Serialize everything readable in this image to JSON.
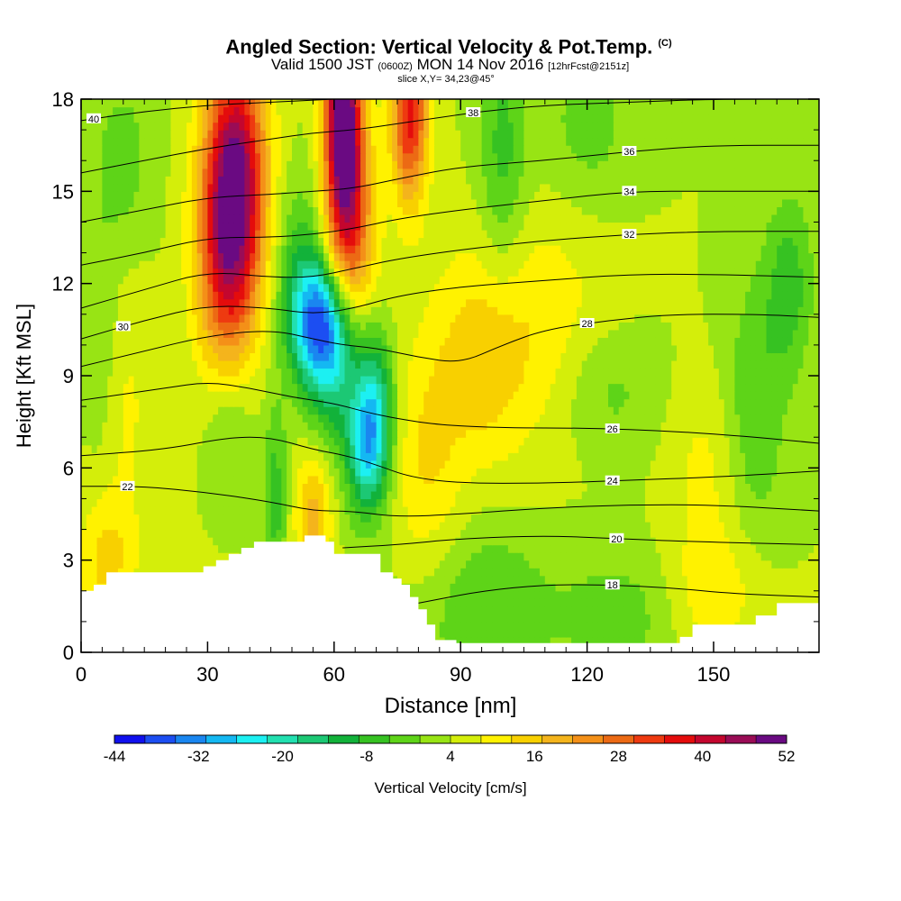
{
  "title": {
    "main": "Angled Section: Vertical Velocity & Pot.Temp.",
    "copyright": "(C)",
    "valid_prefix": "Valid 1500 JST",
    "valid_utc": "(0600Z)",
    "valid_suffix": "MON 14 Nov 2016",
    "forecast": "[12hrFcst@2151z]",
    "slice": "slice X,Y= 34,23@45°"
  },
  "colors": {
    "scale": [
      "#1010ee",
      "#1c4ef2",
      "#1a86f0",
      "#14b8f2",
      "#1cf0f2",
      "#22e0b0",
      "#1cc874",
      "#12b23a",
      "#36c222",
      "#5ed418",
      "#98e414",
      "#d4ee0a",
      "#fff200",
      "#f8d000",
      "#f4b41c",
      "#f49018",
      "#ec6a14",
      "#ee3a10",
      "#e40c0c",
      "#c4062e",
      "#9a0c56",
      "#6a0a82"
    ],
    "terrain": "#ffffff"
  },
  "chart_data": {
    "type": "heatmap",
    "xlabel": "Distance [nm]",
    "ylabel": "Height [Kft MSL]",
    "xlim": [
      0,
      175
    ],
    "ylim": [
      0,
      18
    ],
    "x_ticks": [
      "0",
      "30",
      "60",
      "90",
      "120",
      "150"
    ],
    "y_ticks": [
      "0",
      "3",
      "6",
      "9",
      "12",
      "15",
      "18"
    ],
    "colorbar": {
      "label": "Vertical Velocity [cm/s]",
      "tick_labels": [
        "-44",
        "-32",
        "-20",
        "-8",
        "4",
        "16",
        "28",
        "40",
        "52"
      ],
      "min": -44,
      "max": 52,
      "step": 4
    },
    "velocity_features": [
      {
        "x": 37,
        "y": 15.5,
        "sx": 5,
        "sy": 3,
        "w": 34
      },
      {
        "x": 34,
        "y": 13,
        "sx": 5,
        "sy": 3,
        "w": 22
      },
      {
        "x": 62,
        "y": 17.8,
        "sx": 3,
        "sy": 2.6,
        "w": 44
      },
      {
        "x": 64,
        "y": 14,
        "sx": 4,
        "sy": 2.5,
        "w": 24
      },
      {
        "x": 78,
        "y": 17.5,
        "sx": 3,
        "sy": 2,
        "w": 30
      },
      {
        "x": 56,
        "y": 10.8,
        "sx": 4.5,
        "sy": 1.3,
        "w": -26
      },
      {
        "x": 60,
        "y": 9.5,
        "sx": 5,
        "sy": 1.8,
        "w": -20
      },
      {
        "x": 68,
        "y": 6.6,
        "sx": 3.5,
        "sy": 1.5,
        "w": -26
      },
      {
        "x": 70,
        "y": 8.5,
        "sx": 3,
        "sy": 1.5,
        "w": -14
      },
      {
        "x": 52,
        "y": 12.5,
        "sx": 4,
        "sy": 2,
        "w": -10
      },
      {
        "x": 46,
        "y": 5,
        "sx": 2,
        "sy": 2.2,
        "w": -10
      },
      {
        "x": 35,
        "y": 7.5,
        "sx": 4,
        "sy": 1.5,
        "w": -7
      },
      {
        "x": 100,
        "y": 16,
        "sx": 4,
        "sy": 3,
        "w": -10
      },
      {
        "x": 120,
        "y": 17,
        "sx": 8,
        "sy": 2,
        "w": -6
      },
      {
        "x": 125,
        "y": 8.5,
        "sx": 8,
        "sy": 1.5,
        "w": -6
      },
      {
        "x": 160,
        "y": 8,
        "sx": 5,
        "sy": 3,
        "w": -8
      },
      {
        "x": 168,
        "y": 12,
        "sx": 4,
        "sy": 2,
        "w": -10
      },
      {
        "x": 5,
        "y": 10,
        "sx": 3,
        "sy": 3,
        "w": -5
      },
      {
        "x": 10,
        "y": 16,
        "sx": 5,
        "sy": 2,
        "w": -6
      },
      {
        "x": 95,
        "y": 1.5,
        "sx": 12,
        "sy": 2,
        "w": -8
      },
      {
        "x": 128,
        "y": 1.2,
        "sx": 10,
        "sy": 1.5,
        "w": -6
      },
      {
        "x": 95,
        "y": 9.5,
        "sx": 8,
        "sy": 2.5,
        "w": 9
      },
      {
        "x": 110,
        "y": 11,
        "sx": 12,
        "sy": 3,
        "w": 6
      },
      {
        "x": 82,
        "y": 6,
        "sx": 6,
        "sy": 3,
        "w": 8
      },
      {
        "x": 55,
        "y": 4.5,
        "sx": 3,
        "sy": 1.5,
        "w": 14
      },
      {
        "x": 10,
        "y": 8,
        "sx": 5,
        "sy": 3,
        "w": 5
      },
      {
        "x": 148,
        "y": 6,
        "sx": 6,
        "sy": 2,
        "w": 5
      },
      {
        "x": 150,
        "y": 2,
        "sx": 8,
        "sy": 1.5,
        "w": 7
      },
      {
        "x": 6,
        "y": 3,
        "sx": 5,
        "sy": 1.5,
        "w": 9
      }
    ],
    "background_velocity": 0,
    "terrain_steps": [
      [
        0,
        2.0
      ],
      [
        3,
        2.0
      ],
      [
        3,
        2.2
      ],
      [
        6,
        2.2
      ],
      [
        6,
        2.6
      ],
      [
        9,
        2.6
      ],
      [
        9,
        2.6
      ],
      [
        29,
        2.6
      ],
      [
        29,
        2.8
      ],
      [
        32,
        2.8
      ],
      [
        32,
        3.0
      ],
      [
        35,
        3.0
      ],
      [
        35,
        3.2
      ],
      [
        38,
        3.2
      ],
      [
        38,
        3.4
      ],
      [
        41,
        3.4
      ],
      [
        41,
        3.6
      ],
      [
        53,
        3.6
      ],
      [
        53,
        3.8
      ],
      [
        58,
        3.8
      ],
      [
        58,
        3.6
      ],
      [
        60,
        3.6
      ],
      [
        60,
        3.2
      ],
      [
        71,
        3.2
      ],
      [
        71,
        2.6
      ],
      [
        74,
        2.6
      ],
      [
        74,
        2.4
      ],
      [
        76,
        2.4
      ],
      [
        76,
        2.2
      ],
      [
        78,
        2.2
      ],
      [
        78,
        1.8
      ],
      [
        80,
        1.8
      ],
      [
        80,
        1.4
      ],
      [
        82,
        1.4
      ],
      [
        82,
        0.9
      ],
      [
        84,
        0.9
      ],
      [
        84,
        0.4
      ],
      [
        89,
        0.4
      ],
      [
        89,
        0.3
      ],
      [
        142,
        0.3
      ],
      [
        142,
        0.5
      ],
      [
        145,
        0.5
      ],
      [
        145,
        0.9
      ],
      [
        160,
        0.9
      ],
      [
        160,
        1.2
      ],
      [
        165,
        1.2
      ],
      [
        165,
        1.6
      ],
      [
        175,
        1.6
      ]
    ],
    "theta_contours": [
      {
        "value": 18,
        "label": "18",
        "label_x": 126,
        "points": [
          [
            80,
            1.6
          ],
          [
            95,
            2.0
          ],
          [
            110,
            2.2
          ],
          [
            125,
            2.2
          ],
          [
            140,
            2.1
          ],
          [
            155,
            1.9
          ],
          [
            175,
            1.8
          ]
        ]
      },
      {
        "value": 20,
        "label": "20",
        "label_x": 127,
        "points": [
          [
            62,
            3.4
          ],
          [
            75,
            3.5
          ],
          [
            90,
            3.7
          ],
          [
            110,
            3.8
          ],
          [
            127,
            3.7
          ],
          [
            145,
            3.6
          ],
          [
            175,
            3.5
          ]
        ]
      },
      {
        "value": 22,
        "label": "22",
        "label_x": 11,
        "points": [
          [
            0,
            5.4
          ],
          [
            15,
            5.4
          ],
          [
            30,
            5.2
          ],
          [
            45,
            4.9
          ],
          [
            55,
            4.6
          ],
          [
            64,
            4.6
          ],
          [
            75,
            4.4
          ],
          [
            90,
            4.5
          ],
          [
            110,
            4.7
          ],
          [
            130,
            4.8
          ],
          [
            150,
            4.8
          ],
          [
            175,
            4.6
          ]
        ]
      },
      {
        "value": 24,
        "label": "24",
        "label_x": 126,
        "points": [
          [
            0,
            6.4
          ],
          [
            20,
            6.6
          ],
          [
            35,
            7.0
          ],
          [
            45,
            7.0
          ],
          [
            55,
            6.6
          ],
          [
            63,
            6.4
          ],
          [
            70,
            6.1
          ],
          [
            78,
            5.7
          ],
          [
            90,
            5.5
          ],
          [
            110,
            5.5
          ],
          [
            130,
            5.6
          ],
          [
            150,
            5.7
          ],
          [
            175,
            5.9
          ]
        ]
      },
      {
        "value": 26,
        "label": "26",
        "label_x": 126,
        "points": [
          [
            0,
            8.2
          ],
          [
            20,
            8.6
          ],
          [
            30,
            8.8
          ],
          [
            40,
            8.6
          ],
          [
            50,
            8.3
          ],
          [
            60,
            8.1
          ],
          [
            68,
            7.8
          ],
          [
            75,
            7.6
          ],
          [
            85,
            7.4
          ],
          [
            100,
            7.3
          ],
          [
            120,
            7.3
          ],
          [
            140,
            7.2
          ],
          [
            160,
            7.0
          ],
          [
            175,
            6.8
          ]
        ]
      },
      {
        "value": 28,
        "label": "28",
        "label_x": 120,
        "points": [
          [
            0,
            9.3
          ],
          [
            15,
            9.8
          ],
          [
            30,
            10.3
          ],
          [
            45,
            10.5
          ],
          [
            55,
            10.2
          ],
          [
            62,
            10.0
          ],
          [
            70,
            9.9
          ],
          [
            80,
            9.6
          ],
          [
            90,
            9.4
          ],
          [
            100,
            10.0
          ],
          [
            110,
            10.5
          ],
          [
            125,
            10.8
          ],
          [
            140,
            11.0
          ],
          [
            160,
            11.0
          ],
          [
            175,
            10.9
          ]
        ]
      },
      {
        "value": 30,
        "label": "30",
        "label_x": 10,
        "points": [
          [
            0,
            10.2
          ],
          [
            15,
            10.8
          ],
          [
            30,
            11.3
          ],
          [
            45,
            11.2
          ],
          [
            55,
            11.0
          ],
          [
            65,
            11.2
          ],
          [
            75,
            11.6
          ],
          [
            90,
            11.9
          ],
          [
            110,
            12.1
          ],
          [
            130,
            12.3
          ],
          [
            150,
            12.3
          ],
          [
            175,
            12.2
          ]
        ]
      },
      {
        "value": 32,
        "label": "32",
        "label_x": 130,
        "points": [
          [
            0,
            11.2
          ],
          [
            15,
            11.8
          ],
          [
            30,
            12.4
          ],
          [
            45,
            12.2
          ],
          [
            55,
            12.2
          ],
          [
            65,
            12.5
          ],
          [
            75,
            12.8
          ],
          [
            90,
            13.1
          ],
          [
            110,
            13.4
          ],
          [
            130,
            13.6
          ],
          [
            150,
            13.7
          ],
          [
            175,
            13.7
          ]
        ]
      },
      {
        "value": 34,
        "label": "34",
        "label_x": 130,
        "points": [
          [
            0,
            12.6
          ],
          [
            15,
            13.0
          ],
          [
            30,
            13.5
          ],
          [
            45,
            13.5
          ],
          [
            55,
            13.6
          ],
          [
            65,
            13.8
          ],
          [
            75,
            14.1
          ],
          [
            90,
            14.4
          ],
          [
            110,
            14.7
          ],
          [
            130,
            15.0
          ],
          [
            150,
            15.0
          ],
          [
            175,
            15.0
          ]
        ]
      },
      {
        "value": 36,
        "label": "36",
        "label_x": 130,
        "points": [
          [
            0,
            14.0
          ],
          [
            15,
            14.4
          ],
          [
            30,
            14.8
          ],
          [
            45,
            14.9
          ],
          [
            55,
            15.0
          ],
          [
            65,
            15.1
          ],
          [
            75,
            15.4
          ],
          [
            90,
            15.8
          ],
          [
            110,
            16.0
          ],
          [
            130,
            16.3
          ],
          [
            150,
            16.5
          ],
          [
            175,
            16.5
          ]
        ]
      },
      {
        "value": 38,
        "label": "38",
        "label_x": 93,
        "points": [
          [
            0,
            15.6
          ],
          [
            15,
            16.0
          ],
          [
            30,
            16.4
          ],
          [
            45,
            16.7
          ],
          [
            55,
            16.9
          ],
          [
            65,
            17.0
          ],
          [
            75,
            17.2
          ],
          [
            85,
            17.4
          ],
          [
            95,
            17.6
          ],
          [
            110,
            17.8
          ],
          [
            130,
            17.9
          ],
          [
            150,
            18.0
          ],
          [
            175,
            18.0
          ]
        ]
      },
      {
        "value": 40,
        "label": "40",
        "label_x": 3,
        "points": [
          [
            0,
            17.3
          ],
          [
            15,
            17.6
          ],
          [
            30,
            17.8
          ],
          [
            45,
            17.9
          ],
          [
            60,
            18.0
          ]
        ]
      }
    ]
  }
}
